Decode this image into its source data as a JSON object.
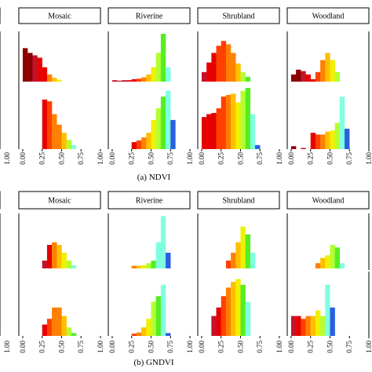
{
  "chart_data": {
    "type": "bar",
    "palette": [
      "#8b0000",
      "#c4122b",
      "#e60000",
      "#ff4000",
      "#ff8000",
      "#ffbf00",
      "#f0f000",
      "#b3ff33",
      "#55ee22",
      "#80ffe0",
      "#2a60e0"
    ],
    "bins_x": [
      0.0,
      0.0625,
      0.125,
      0.1875,
      0.25,
      0.3125,
      0.375,
      0.4375,
      0.5,
      0.5625,
      0.625,
      0.6875,
      0.75,
      0.8125,
      0.875,
      0.9375
    ],
    "xlim": [
      -0.05,
      1.0
    ],
    "x_ticks": [
      "0.00",
      "0.25",
      "0.50",
      "0.75",
      "1.00"
    ],
    "edge_tick": "1.00",
    "panels": [
      {
        "caption": "(a) NDVI",
        "classes": [
          {
            "name": "Mosaic",
            "row1": [
              {
                "x": 0.0,
                "h": 0.7,
                "c": 0
              },
              {
                "x": 0.0625,
                "h": 0.6,
                "c": 0
              },
              {
                "x": 0.125,
                "h": 0.55,
                "c": 1
              },
              {
                "x": 0.1875,
                "h": 0.5,
                "c": 2
              },
              {
                "x": 0.25,
                "h": 0.3,
                "c": 2
              },
              {
                "x": 0.3125,
                "h": 0.15,
                "c": 4
              },
              {
                "x": 0.375,
                "h": 0.08,
                "c": 5
              },
              {
                "x": 0.4375,
                "h": 0.04,
                "c": 6
              }
            ],
            "row2": [
              {
                "x": 0.25,
                "h": 0.85,
                "c": 2
              },
              {
                "x": 0.3125,
                "h": 0.82,
                "c": 3
              },
              {
                "x": 0.375,
                "h": 0.6,
                "c": 4
              },
              {
                "x": 0.4375,
                "h": 0.42,
                "c": 4
              },
              {
                "x": 0.5,
                "h": 0.28,
                "c": 5
              },
              {
                "x": 0.5625,
                "h": 0.16,
                "c": 7
              },
              {
                "x": 0.625,
                "h": 0.07,
                "c": 9
              }
            ]
          },
          {
            "name": "Riverine",
            "row1": [
              {
                "x": 0.0,
                "h": 0.03,
                "c": 1
              },
              {
                "x": 0.0625,
                "h": 0.02,
                "c": 1
              },
              {
                "x": 0.125,
                "h": 0.03,
                "c": 1
              },
              {
                "x": 0.1875,
                "h": 0.03,
                "c": 2
              },
              {
                "x": 0.25,
                "h": 0.05,
                "c": 2
              },
              {
                "x": 0.3125,
                "h": 0.06,
                "c": 3
              },
              {
                "x": 0.375,
                "h": 0.09,
                "c": 4
              },
              {
                "x": 0.4375,
                "h": 0.15,
                "c": 5
              },
              {
                "x": 0.5,
                "h": 0.3,
                "c": 6
              },
              {
                "x": 0.5625,
                "h": 0.6,
                "c": 7
              },
              {
                "x": 0.625,
                "h": 1.0,
                "c": 8
              },
              {
                "x": 0.6875,
                "h": 0.3,
                "c": 9
              }
            ],
            "row2": [
              {
                "x": 0.25,
                "h": 0.12,
                "c": 2
              },
              {
                "x": 0.3125,
                "h": 0.15,
                "c": 3
              },
              {
                "x": 0.375,
                "h": 0.2,
                "c": 4
              },
              {
                "x": 0.4375,
                "h": 0.28,
                "c": 5
              },
              {
                "x": 0.5,
                "h": 0.5,
                "c": 6
              },
              {
                "x": 0.5625,
                "h": 0.7,
                "c": 7
              },
              {
                "x": 0.625,
                "h": 0.9,
                "c": 8
              },
              {
                "x": 0.6875,
                "h": 1.0,
                "c": 9
              },
              {
                "x": 0.75,
                "h": 0.5,
                "c": 10
              }
            ]
          },
          {
            "name": "Shrubland",
            "row1": [
              {
                "x": 0.0,
                "h": 0.2,
                "c": 1
              },
              {
                "x": 0.0625,
                "h": 0.4,
                "c": 2
              },
              {
                "x": 0.125,
                "h": 0.6,
                "c": 2
              },
              {
                "x": 0.1875,
                "h": 0.75,
                "c": 3
              },
              {
                "x": 0.25,
                "h": 0.85,
                "c": 3
              },
              {
                "x": 0.3125,
                "h": 0.78,
                "c": 4
              },
              {
                "x": 0.375,
                "h": 0.6,
                "c": 4
              },
              {
                "x": 0.4375,
                "h": 0.38,
                "c": 5
              },
              {
                "x": 0.5,
                "h": 0.2,
                "c": 7
              },
              {
                "x": 0.5625,
                "h": 0.1,
                "c": 8
              }
            ],
            "row2": [
              {
                "x": 0.0,
                "h": 0.55,
                "c": 2
              },
              {
                "x": 0.0625,
                "h": 0.6,
                "c": 2
              },
              {
                "x": 0.125,
                "h": 0.62,
                "c": 2
              },
              {
                "x": 0.1875,
                "h": 0.7,
                "c": 3
              },
              {
                "x": 0.25,
                "h": 0.9,
                "c": 3
              },
              {
                "x": 0.3125,
                "h": 0.93,
                "c": 4
              },
              {
                "x": 0.375,
                "h": 0.95,
                "c": 5
              },
              {
                "x": 0.4375,
                "h": 0.8,
                "c": 6
              },
              {
                "x": 0.5,
                "h": 1.0,
                "c": 7
              },
              {
                "x": 0.5625,
                "h": 1.05,
                "c": 8
              },
              {
                "x": 0.625,
                "h": 0.6,
                "c": 9
              },
              {
                "x": 0.6875,
                "h": 0.07,
                "c": 10
              }
            ]
          },
          {
            "name": "Woodland",
            "row1": [
              {
                "x": 0.0,
                "h": 0.15,
                "c": 0
              },
              {
                "x": 0.0625,
                "h": 0.25,
                "c": 0
              },
              {
                "x": 0.125,
                "h": 0.22,
                "c": 1
              },
              {
                "x": 0.1875,
                "h": 0.15,
                "c": 2
              },
              {
                "x": 0.25,
                "h": 0.05,
                "c": 2
              },
              {
                "x": 0.3125,
                "h": 0.2,
                "c": 3
              },
              {
                "x": 0.375,
                "h": 0.45,
                "c": 4
              },
              {
                "x": 0.4375,
                "h": 0.6,
                "c": 5
              },
              {
                "x": 0.5,
                "h": 0.45,
                "c": 6
              },
              {
                "x": 0.5625,
                "h": 0.2,
                "c": 7
              }
            ],
            "row2": [
              {
                "x": 0.0,
                "h": 0.05,
                "c": 0
              },
              {
                "x": 0.125,
                "h": 0.02,
                "c": 1
              },
              {
                "x": 0.25,
                "h": 0.28,
                "c": 2
              },
              {
                "x": 0.3125,
                "h": 0.25,
                "c": 3
              },
              {
                "x": 0.375,
                "h": 0.25,
                "c": 4
              },
              {
                "x": 0.4375,
                "h": 0.3,
                "c": 5
              },
              {
                "x": 0.5,
                "h": 0.32,
                "c": 6
              },
              {
                "x": 0.5625,
                "h": 0.45,
                "c": 7
              },
              {
                "x": 0.625,
                "h": 0.9,
                "c": 9
              },
              {
                "x": 0.6875,
                "h": 0.35,
                "c": 10
              }
            ]
          }
        ]
      },
      {
        "caption": "(b) GNDVI",
        "classes": [
          {
            "name": "Mosaic",
            "row1": [
              {
                "x": 0.25,
                "h": 0.15,
                "c": 1
              },
              {
                "x": 0.3125,
                "h": 0.45,
                "c": 2
              },
              {
                "x": 0.375,
                "h": 0.5,
                "c": 4
              },
              {
                "x": 0.4375,
                "h": 0.45,
                "c": 5
              },
              {
                "x": 0.5,
                "h": 0.3,
                "c": 6
              },
              {
                "x": 0.5625,
                "h": 0.15,
                "c": 7
              },
              {
                "x": 0.625,
                "h": 0.06,
                "c": 9
              }
            ],
            "row2": [
              {
                "x": 0.25,
                "h": 0.2,
                "c": 2
              },
              {
                "x": 0.3125,
                "h": 0.3,
                "c": 3
              },
              {
                "x": 0.375,
                "h": 0.5,
                "c": 4
              },
              {
                "x": 0.4375,
                "h": 0.5,
                "c": 4
              },
              {
                "x": 0.5,
                "h": 0.35,
                "c": 5
              },
              {
                "x": 0.5625,
                "h": 0.15,
                "c": 7
              },
              {
                "x": 0.625,
                "h": 0.05,
                "c": 8
              }
            ]
          },
          {
            "name": "Riverine",
            "row1": [
              {
                "x": 0.25,
                "h": 0.05,
                "c": 4
              },
              {
                "x": 0.3125,
                "h": 0.05,
                "c": 5
              },
              {
                "x": 0.375,
                "h": 0.06,
                "c": 6
              },
              {
                "x": 0.4375,
                "h": 0.1,
                "c": 7
              },
              {
                "x": 0.5,
                "h": 0.15,
                "c": 8
              },
              {
                "x": 0.5625,
                "h": 0.5,
                "c": 9
              },
              {
                "x": 0.625,
                "h": 1.0,
                "c": 9
              },
              {
                "x": 0.6875,
                "h": 0.3,
                "c": 10
              }
            ],
            "row2": [
              {
                "x": 0.25,
                "h": 0.04,
                "c": 3
              },
              {
                "x": 0.3125,
                "h": 0.06,
                "c": 4
              },
              {
                "x": 0.375,
                "h": 0.15,
                "c": 5
              },
              {
                "x": 0.4375,
                "h": 0.3,
                "c": 6
              },
              {
                "x": 0.5,
                "h": 0.6,
                "c": 7
              },
              {
                "x": 0.5625,
                "h": 0.7,
                "c": 8
              },
              {
                "x": 0.625,
                "h": 0.9,
                "c": 9
              },
              {
                "x": 0.6875,
                "h": 0.05,
                "c": 10
              }
            ]
          },
          {
            "name": "Shrubland",
            "row1": [
              {
                "x": 0.3125,
                "h": 0.15,
                "c": 3
              },
              {
                "x": 0.375,
                "h": 0.3,
                "c": 4
              },
              {
                "x": 0.4375,
                "h": 0.5,
                "c": 5
              },
              {
                "x": 0.5,
                "h": 0.8,
                "c": 6
              },
              {
                "x": 0.5625,
                "h": 0.65,
                "c": 8
              },
              {
                "x": 0.625,
                "h": 0.3,
                "c": 9
              }
            ],
            "row2": [
              {
                "x": 0.125,
                "h": 0.35,
                "c": 1
              },
              {
                "x": 0.1875,
                "h": 0.5,
                "c": 2
              },
              {
                "x": 0.25,
                "h": 0.7,
                "c": 3
              },
              {
                "x": 0.3125,
                "h": 0.85,
                "c": 4
              },
              {
                "x": 0.375,
                "h": 0.95,
                "c": 5
              },
              {
                "x": 0.4375,
                "h": 1.0,
                "c": 6
              },
              {
                "x": 0.5,
                "h": 0.9,
                "c": 8
              },
              {
                "x": 0.5625,
                "h": 0.6,
                "c": 9
              }
            ]
          },
          {
            "name": "Woodland",
            "row1": [
              {
                "x": 0.3125,
                "h": 0.1,
                "c": 4
              },
              {
                "x": 0.375,
                "h": 0.2,
                "c": 5
              },
              {
                "x": 0.4375,
                "h": 0.25,
                "c": 6
              },
              {
                "x": 0.5,
                "h": 0.45,
                "c": 7
              },
              {
                "x": 0.5625,
                "h": 0.4,
                "c": 8
              },
              {
                "x": 0.625,
                "h": 0.1,
                "c": 9
              }
            ],
            "row2": [
              {
                "x": 0.0,
                "h": 0.35,
                "c": 1
              },
              {
                "x": 0.0625,
                "h": 0.35,
                "c": 2
              },
              {
                "x": 0.125,
                "h": 0.3,
                "c": 3
              },
              {
                "x": 0.1875,
                "h": 0.35,
                "c": 4
              },
              {
                "x": 0.25,
                "h": 0.35,
                "c": 5
              },
              {
                "x": 0.3125,
                "h": 0.45,
                "c": 6
              },
              {
                "x": 0.375,
                "h": 0.35,
                "c": 7
              },
              {
                "x": 0.4375,
                "h": 0.9,
                "c": 9
              },
              {
                "x": 0.5,
                "h": 0.5,
                "c": 10
              }
            ]
          }
        ]
      }
    ]
  }
}
